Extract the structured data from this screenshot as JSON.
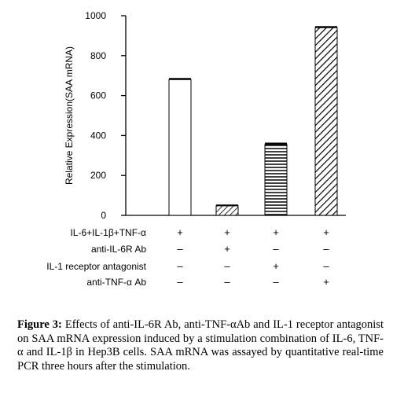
{
  "chart_data": {
    "type": "bar",
    "ylabel": "Relative Expression(SAA mRNA)",
    "ylim": [
      0,
      1000
    ],
    "yticks": [
      0,
      200,
      400,
      600,
      800,
      1000
    ],
    "values": [
      680,
      48,
      355,
      940
    ],
    "errors": [
      4,
      2,
      5,
      4
    ],
    "patterns": [
      "none",
      "diagonal-fine",
      "horizontal",
      "diagonal-wide"
    ],
    "grid": false,
    "conditions": [
      {
        "label": "IL-6+IL-1β+TNF-α",
        "signs": [
          "+",
          "+",
          "+",
          "+"
        ]
      },
      {
        "label": "anti-IL-6R Ab",
        "signs": [
          "–",
          "+",
          "–",
          "–"
        ]
      },
      {
        "label": "IL-1 receptor antagonist",
        "signs": [
          "–",
          "–",
          "+",
          "–"
        ]
      },
      {
        "label": "anti-TNF-α Ab",
        "signs": [
          "–",
          "–",
          "–",
          "+"
        ]
      }
    ]
  },
  "caption": {
    "label": "Figure 3:",
    "text": "Effects of anti-IL-6R Ab, anti-TNF-αAb and IL-1 receptor antagonist on SAA mRNA expression induced by a stimulation combination of IL-6, TNF-α and IL-1β in Hep3B cells. SAA mRNA was assayed by quantitative real-time PCR three hours after the stimulation."
  }
}
